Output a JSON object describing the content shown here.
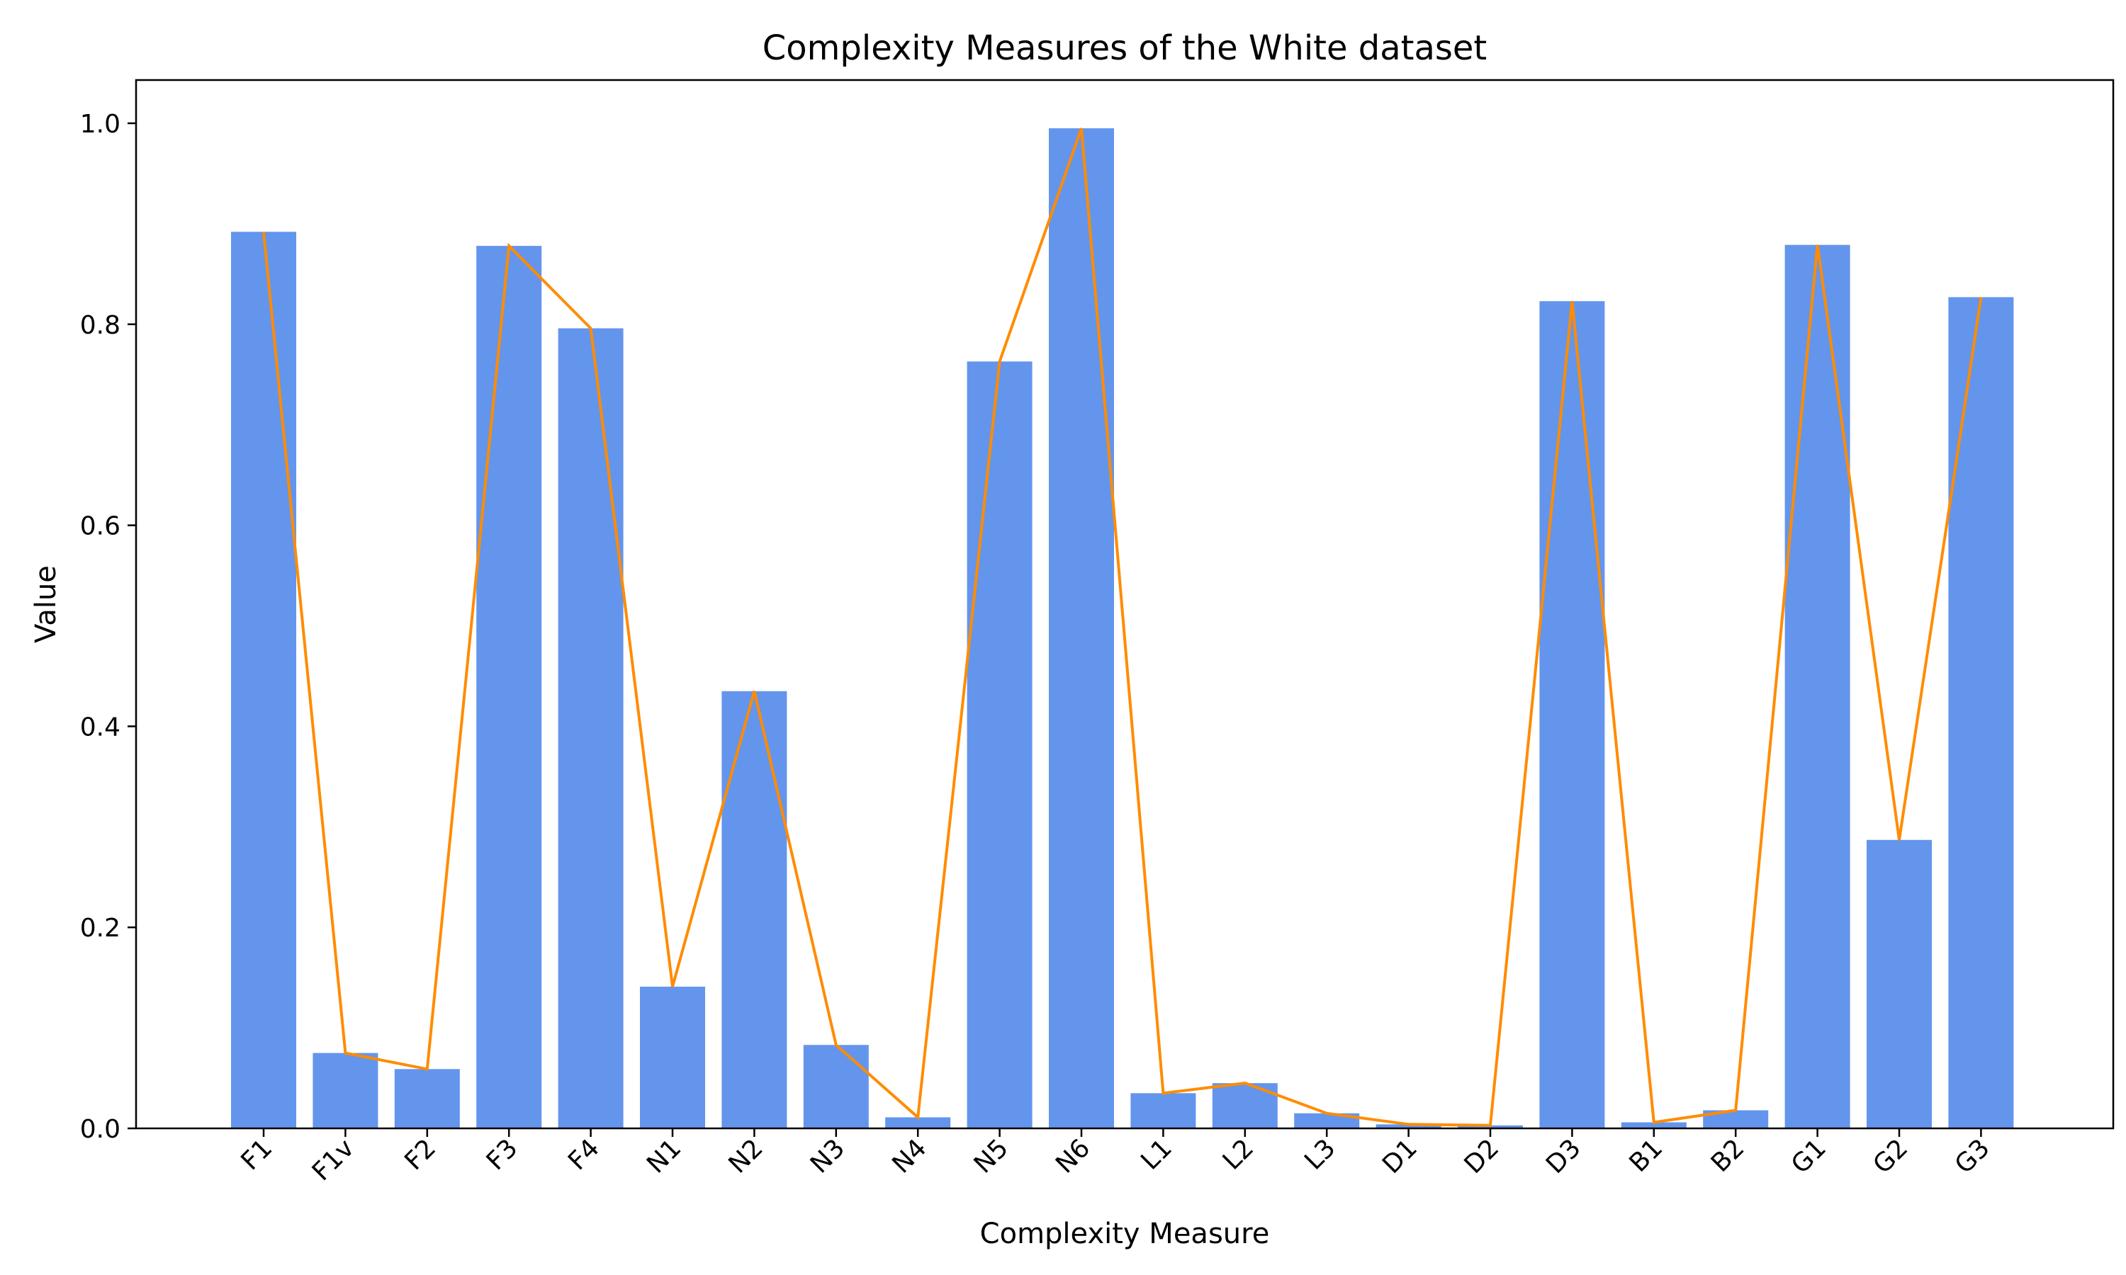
{
  "chart_data": {
    "type": "bar",
    "title": "Complexity Measures of the White dataset",
    "xlabel": "Complexity Measure",
    "ylabel": "Value",
    "ylim": [
      0,
      1.043
    ],
    "yticks": [
      "0.0",
      "0.2",
      "0.4",
      "0.6",
      "0.8",
      "1.0"
    ],
    "grid": false,
    "categories": [
      "F1",
      "F1v",
      "F2",
      "F3",
      "F4",
      "N1",
      "N2",
      "N3",
      "N4",
      "N5",
      "N6",
      "L1",
      "L2",
      "L3",
      "D1",
      "D2",
      "D3",
      "B1",
      "B2",
      "G1",
      "G2",
      "G3"
    ],
    "series": [
      {
        "type": "bar",
        "color": "#6495ED",
        "values": [
          0.892,
          0.075,
          0.059,
          0.878,
          0.796,
          0.141,
          0.435,
          0.083,
          0.011,
          0.763,
          0.995,
          0.035,
          0.045,
          0.015,
          0.004,
          0.003,
          0.823,
          0.006,
          0.018,
          0.879,
          0.287,
          0.827
        ]
      },
      {
        "type": "line",
        "color": "#FF8C00",
        "values": [
          0.892,
          0.075,
          0.059,
          0.878,
          0.796,
          0.141,
          0.435,
          0.083,
          0.011,
          0.763,
          0.995,
          0.035,
          0.045,
          0.015,
          0.004,
          0.003,
          0.823,
          0.006,
          0.018,
          0.879,
          0.287,
          0.827
        ]
      }
    ]
  }
}
